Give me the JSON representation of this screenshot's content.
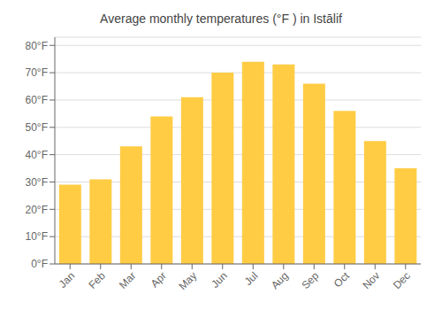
{
  "chart_data": {
    "type": "bar",
    "title": "Average monthly temperatures (°F ) in Istālif",
    "categories": [
      "Jan",
      "Feb",
      "Mar",
      "Apr",
      "May",
      "Jun",
      "Jul",
      "Aug",
      "Sep",
      "Oct",
      "Nov",
      "Dec"
    ],
    "values": [
      29,
      31,
      43,
      54,
      61,
      70,
      74,
      73,
      66,
      56,
      45,
      35
    ],
    "color": "#FFCC44",
    "ylim": [
      0,
      83
    ],
    "yticks": [
      {
        "value": 0,
        "label": "0°F"
      },
      {
        "value": 10,
        "label": "10°F"
      },
      {
        "value": 20,
        "label": "20°F"
      },
      {
        "value": 30,
        "label": "30°F"
      },
      {
        "value": 40,
        "label": "40°F"
      },
      {
        "value": 50,
        "label": "50°F"
      },
      {
        "value": 60,
        "label": "60°F"
      },
      {
        "value": 70,
        "label": "70°F"
      },
      {
        "value": 80,
        "label": "80°F"
      }
    ],
    "grid": true
  }
}
